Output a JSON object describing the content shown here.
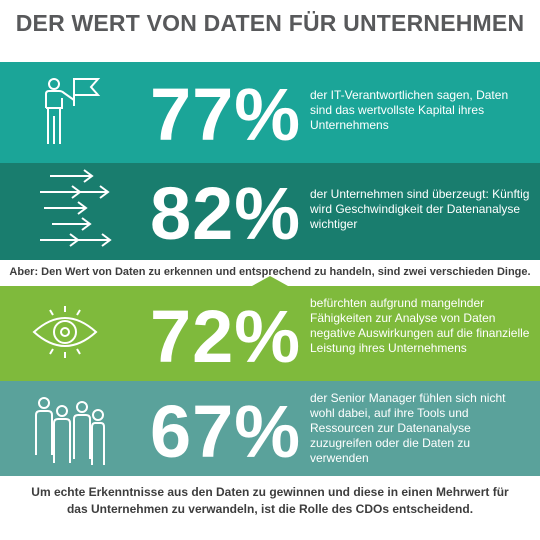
{
  "title": "DER WERT VON DATEN FÜR UNTERNEHMEN",
  "stats": [
    {
      "percent": "77%",
      "text": "der IT-Verantwortlichen sagen, Daten sind das wertvollste Kapital ihres Unternehmens",
      "icon": "person-flag-icon",
      "color": "#1ba598"
    },
    {
      "percent": "82%",
      "text": "der Unternehmen sind überzeugt: Künftig wird Geschwindigkeit der Datenanalyse wichtiger",
      "icon": "arrows-icon",
      "color": "#197d6e"
    },
    {
      "percent": "72%",
      "text": "befürchten aufgrund mangelnder Fähigkeiten zur Analyse von Daten negative Auswirkungen auf die finanzielle Leistung ihres Unternehmens",
      "icon": "eye-icon",
      "color": "#7fba3c"
    },
    {
      "percent": "67%",
      "text": "der Senior Manager fühlen sich nicht wohl dabei, auf ihre Tools und Ressourcen zur Datenanalyse zuzugreifen oder die Daten zu verwenden",
      "icon": "people-group-icon",
      "color": "#5aa29b"
    }
  ],
  "note": "Aber: Den Wert von Daten zu erkennen und entsprechend zu handeln,  sind zwei verschieden Dinge.",
  "footer": "Um echte Erkenntnisse aus den Daten zu gewinnen und diese in einen Mehrwert für das Unternehmen zu verwandeln, ist die Rolle des CDOs entscheidend."
}
